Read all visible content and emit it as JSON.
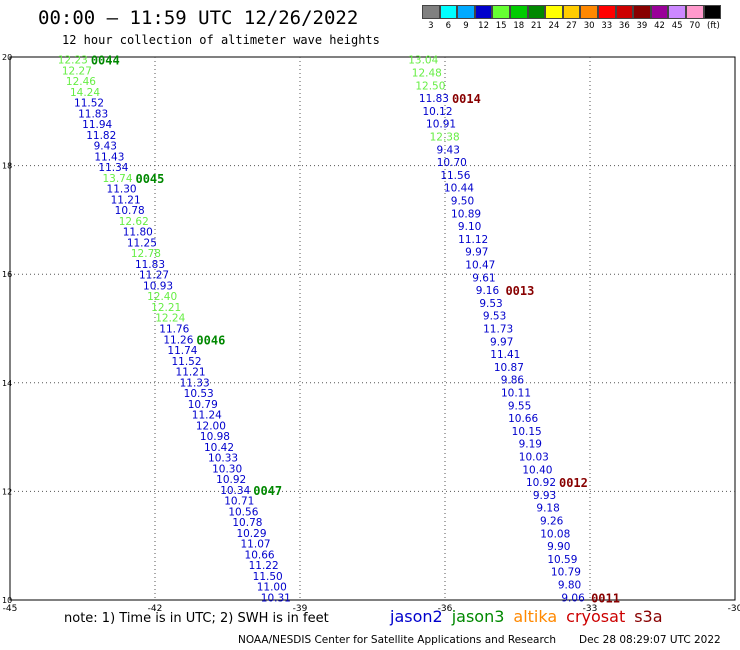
{
  "title": "00:00 – 11:59 UTC 12/26/2022",
  "subtitle": "12 hour collection of altimeter wave heights",
  "colorbar": {
    "unit": "(ft)",
    "items": [
      {
        "label": "3",
        "color": "#808080"
      },
      {
        "label": "6",
        "color": "#00ffff"
      },
      {
        "label": "9",
        "color": "#00aaff"
      },
      {
        "label": "12",
        "color": "#0000cc"
      },
      {
        "label": "15",
        "color": "#66ff33"
      },
      {
        "label": "18",
        "color": "#00cc00"
      },
      {
        "label": "21",
        "color": "#008800"
      },
      {
        "label": "24",
        "color": "#ffff00"
      },
      {
        "label": "27",
        "color": "#ffcc00"
      },
      {
        "label": "30",
        "color": "#ff8800"
      },
      {
        "label": "33",
        "color": "#ff0000"
      },
      {
        "label": "36",
        "color": "#cc0000"
      },
      {
        "label": "39",
        "color": "#880000"
      },
      {
        "label": "42",
        "color": "#990099"
      },
      {
        "label": "45",
        "color": "#cc88ff"
      },
      {
        "label": "70",
        "color": "#ff99cc"
      },
      {
        "label": "",
        "color": "#000000"
      }
    ]
  },
  "axes": {
    "xlim": [
      -45,
      -30
    ],
    "ylim": [
      10,
      20
    ],
    "x_ticks": [
      {
        "value": -45,
        "label": "-45"
      },
      {
        "value": -42,
        "label": "-42"
      },
      {
        "value": -39,
        "label": "-39"
      },
      {
        "value": -36,
        "label": "-36"
      },
      {
        "value": -33,
        "label": "-33"
      },
      {
        "value": -30,
        "label": "-30"
      }
    ],
    "y_ticks": [
      {
        "value": 10,
        "label": "10"
      },
      {
        "value": 12,
        "label": "12"
      },
      {
        "value": 14,
        "label": "14"
      },
      {
        "value": 16,
        "label": "16"
      },
      {
        "value": 18,
        "label": "18"
      },
      {
        "value": 20,
        "label": "20"
      }
    ]
  },
  "satellite_colors": {
    "jason2": "#0000cc",
    "jason3": "#008800",
    "jason3_light": "#66ee44",
    "pass_marker": "#880000"
  },
  "tracks": [
    {
      "start": [
        -43.7,
        19.95
      ],
      "end": [
        -39.5,
        10.05
      ],
      "readings": [
        {
          "v": "12.23",
          "c": "light"
        },
        {
          "v": "12.27",
          "c": "light"
        },
        {
          "v": "12.46",
          "c": "light"
        },
        {
          "v": "14.24",
          "c": "light"
        },
        {
          "v": "11.52",
          "c": "blue"
        },
        {
          "v": "11.83",
          "c": "blue"
        },
        {
          "v": "11.94",
          "c": "blue"
        },
        {
          "v": "11.82",
          "c": "blue"
        },
        {
          "v": "9.43",
          "c": "blue"
        },
        {
          "v": "11.43",
          "c": "blue"
        },
        {
          "v": "11.34",
          "c": "blue"
        },
        {
          "v": "13.74",
          "c": "light"
        },
        {
          "v": "11.30",
          "c": "blue"
        },
        {
          "v": "11.21",
          "c": "blue"
        },
        {
          "v": "10.78",
          "c": "blue"
        },
        {
          "v": "12.62",
          "c": "light"
        },
        {
          "v": "11.80",
          "c": "blue"
        },
        {
          "v": "11.25",
          "c": "blue"
        },
        {
          "v": "12.78",
          "c": "light"
        },
        {
          "v": "11.83",
          "c": "blue"
        },
        {
          "v": "11.27",
          "c": "blue"
        },
        {
          "v": "10.93",
          "c": "blue"
        },
        {
          "v": "12.40",
          "c": "light"
        },
        {
          "v": "12.21",
          "c": "light"
        },
        {
          "v": "12.24",
          "c": "light"
        },
        {
          "v": "11.76",
          "c": "blue"
        },
        {
          "v": "11.26",
          "c": "blue"
        },
        {
          "v": "11.74",
          "c": "blue"
        },
        {
          "v": "11.52",
          "c": "blue"
        },
        {
          "v": "11.21",
          "c": "blue"
        },
        {
          "v": "11.33",
          "c": "blue"
        },
        {
          "v": "10.53",
          "c": "blue"
        },
        {
          "v": "10.79",
          "c": "blue"
        },
        {
          "v": "11.24",
          "c": "blue"
        },
        {
          "v": "12.00",
          "c": "blue"
        },
        {
          "v": "10.98",
          "c": "blue"
        },
        {
          "v": "10.42",
          "c": "blue"
        },
        {
          "v": "10.33",
          "c": "blue"
        },
        {
          "v": "10.30",
          "c": "blue"
        },
        {
          "v": "10.92",
          "c": "blue"
        },
        {
          "v": "10.34",
          "c": "blue"
        },
        {
          "v": "10.71",
          "c": "blue"
        },
        {
          "v": "10.56",
          "c": "blue"
        },
        {
          "v": "10.78",
          "c": "blue"
        },
        {
          "v": "10.29",
          "c": "blue"
        },
        {
          "v": "11.07",
          "c": "blue"
        },
        {
          "v": "10.66",
          "c": "blue"
        },
        {
          "v": "11.22",
          "c": "blue"
        },
        {
          "v": "11.50",
          "c": "blue"
        },
        {
          "v": "11.00",
          "c": "blue"
        },
        {
          "v": "10.31",
          "c": "blue"
        }
      ],
      "markers": [
        {
          "label": "0044",
          "index": 0,
          "c": "dark"
        },
        {
          "label": "0045",
          "index": 11,
          "c": "dark"
        },
        {
          "label": "0046",
          "index": 26,
          "c": "dark"
        },
        {
          "label": "0047",
          "index": 40,
          "c": "dark"
        }
      ]
    },
    {
      "start": [
        -36.45,
        19.95
      ],
      "end": [
        -33.35,
        10.05
      ],
      "readings": [
        {
          "v": "13.04",
          "c": "light"
        },
        {
          "v": "12.48",
          "c": "light"
        },
        {
          "v": "12.50",
          "c": "light"
        },
        {
          "v": "11.83",
          "c": "blue"
        },
        {
          "v": "10.12",
          "c": "blue"
        },
        {
          "v": "10.91",
          "c": "blue"
        },
        {
          "v": "12.38",
          "c": "light"
        },
        {
          "v": "9.43",
          "c": "blue"
        },
        {
          "v": "10.70",
          "c": "blue"
        },
        {
          "v": "11.56",
          "c": "blue"
        },
        {
          "v": "10.44",
          "c": "blue"
        },
        {
          "v": "9.50",
          "c": "blue"
        },
        {
          "v": "10.89",
          "c": "blue"
        },
        {
          "v": "9.10",
          "c": "blue"
        },
        {
          "v": "11.12",
          "c": "blue"
        },
        {
          "v": "9.97",
          "c": "blue"
        },
        {
          "v": "10.47",
          "c": "blue"
        },
        {
          "v": "9.61",
          "c": "blue"
        },
        {
          "v": "9.16",
          "c": "blue"
        },
        {
          "v": "9.53",
          "c": "blue"
        },
        {
          "v": "9.53",
          "c": "blue"
        },
        {
          "v": "11.73",
          "c": "blue"
        },
        {
          "v": "9.97",
          "c": "blue"
        },
        {
          "v": "11.41",
          "c": "blue"
        },
        {
          "v": "10.87",
          "c": "blue"
        },
        {
          "v": "9.86",
          "c": "blue"
        },
        {
          "v": "10.11",
          "c": "blue"
        },
        {
          "v": "9.55",
          "c": "blue"
        },
        {
          "v": "10.66",
          "c": "blue"
        },
        {
          "v": "10.15",
          "c": "blue"
        },
        {
          "v": "9.19",
          "c": "blue"
        },
        {
          "v": "10.03",
          "c": "blue"
        },
        {
          "v": "10.40",
          "c": "blue"
        },
        {
          "v": "10.92",
          "c": "blue"
        },
        {
          "v": "9.93",
          "c": "blue"
        },
        {
          "v": "9.18",
          "c": "blue"
        },
        {
          "v": "9.26",
          "c": "blue"
        },
        {
          "v": "10.08",
          "c": "blue"
        },
        {
          "v": "9.90",
          "c": "blue"
        },
        {
          "v": "10.59",
          "c": "blue"
        },
        {
          "v": "10.79",
          "c": "blue"
        },
        {
          "v": "9.80",
          "c": "blue"
        },
        {
          "v": "9.06",
          "c": "blue"
        }
      ],
      "markers": [
        {
          "label": "0014",
          "index": 3,
          "c": "marker"
        },
        {
          "label": "0013",
          "index": 18,
          "c": "marker"
        },
        {
          "label": "0012",
          "index": 33,
          "c": "marker"
        },
        {
          "label": "0011",
          "index": 42,
          "c": "marker"
        }
      ]
    }
  ],
  "footer": {
    "note": "note: 1) Time is in UTC; 2) SWH is in feet",
    "satellites": [
      {
        "name": "jason2",
        "color": "#0000cc"
      },
      {
        "name": "jason3",
        "color": "#008800"
      },
      {
        "name": "altika",
        "color": "#ff8800"
      },
      {
        "name": "cryosat",
        "color": "#cc0000"
      },
      {
        "name": "s3a",
        "color": "#880000"
      }
    ],
    "credit": "NOAA/NESDIS Center for Satellite Applications and Research",
    "generated": "Dec 28 08:29:07 UTC 2022"
  }
}
